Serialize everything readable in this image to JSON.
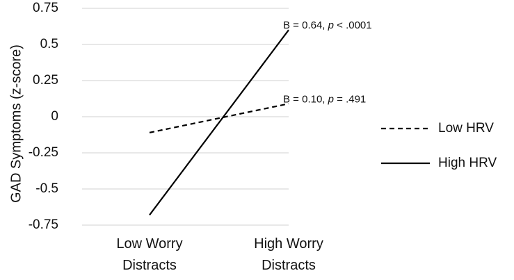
{
  "chart_data": {
    "type": "line",
    "title": "",
    "xlabel": "",
    "ylabel": "GAD Symptoms (z-score)",
    "categories": [
      [
        "Low Worry",
        "Distracts"
      ],
      [
        "High Worry",
        "Distracts"
      ]
    ],
    "ylim": [
      -0.75,
      0.75
    ],
    "yticks": [
      0.75,
      0.5,
      0.25,
      0,
      -0.25,
      -0.5,
      -0.75
    ],
    "ytick_labels": [
      "0.75",
      "0.5",
      "0.25",
      "0",
      "-0.25",
      "-0.5",
      "-0.75"
    ],
    "grid": true,
    "legend_position": "right",
    "series": [
      {
        "name": "Low HRV",
        "style": "dashed",
        "values": [
          -0.11,
          0.09
        ],
        "annotation": {
          "prefix": "B = 0.10, ",
          "p": "p",
          "suffix": " = .491"
        }
      },
      {
        "name": "High HRV",
        "style": "solid",
        "values": [
          -0.68,
          0.6
        ],
        "annotation": {
          "prefix": "B = 0.64, ",
          "p": "p",
          "suffix": " < .0001"
        }
      }
    ],
    "colors": {
      "line": "#000000",
      "grid": "#d9d9d9"
    }
  }
}
